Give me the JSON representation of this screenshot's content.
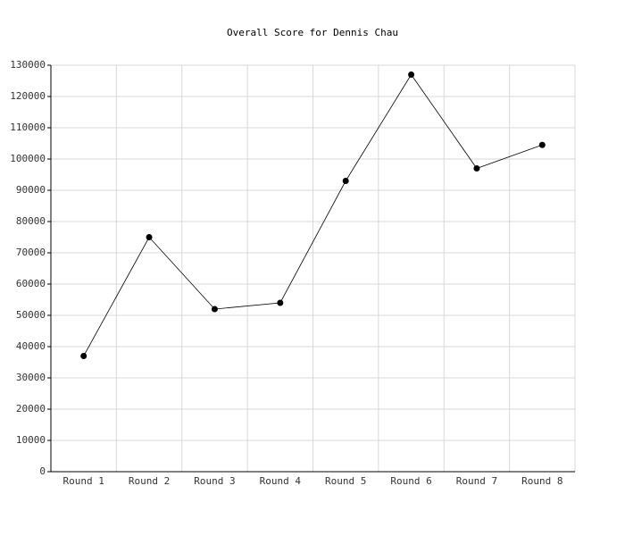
{
  "chart_data": {
    "type": "line",
    "title": "Overall Score for Dennis Chau",
    "categories": [
      "Round 1",
      "Round 2",
      "Round 3",
      "Round 4",
      "Round 5",
      "Round 6",
      "Round 7",
      "Round 8"
    ],
    "values": [
      37000,
      75000,
      52000,
      54000,
      93000,
      127000,
      97000,
      104500
    ],
    "color": "#000000",
    "ylim": [
      0,
      130000
    ],
    "yticks": [
      0,
      10000,
      20000,
      30000,
      40000,
      50000,
      60000,
      70000,
      80000,
      90000,
      100000,
      110000,
      120000,
      130000
    ],
    "grid": true
  }
}
